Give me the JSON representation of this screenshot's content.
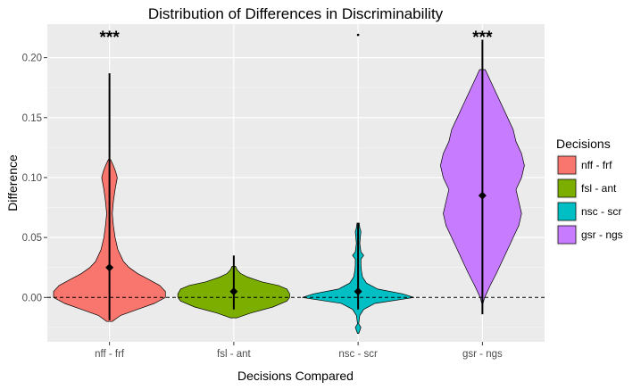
{
  "chart_data": {
    "type": "violin",
    "title": "Distribution of Differences in Discriminability",
    "xlabel": "Decisions Compared",
    "ylabel": "Difference",
    "ylim": [
      -0.037,
      0.228
    ],
    "yticks": [
      0.0,
      0.05,
      0.1,
      0.15,
      0.2
    ],
    "ytick_labels": [
      "0.00",
      "0.05",
      "0.10",
      "0.15",
      "0.20"
    ],
    "reference_line": {
      "y": 0,
      "style": "dashed"
    },
    "legend": {
      "title": "Decisions",
      "placement": "right"
    },
    "grid": true,
    "categories": [
      "nff - frf",
      "fsl - ant",
      "nsc - scr",
      "gsr - ngs"
    ],
    "series": [
      {
        "name": "nff - frf",
        "color": "#F8766D",
        "mean": 0.025,
        "significance": "***",
        "whisker": [
          -0.019,
          0.187
        ],
        "density": [
          [
            -0.02,
            0.05
          ],
          [
            -0.015,
            0.2
          ],
          [
            -0.01,
            0.5
          ],
          [
            -0.005,
            0.8
          ],
          [
            0.0,
            1.0
          ],
          [
            0.005,
            1.0
          ],
          [
            0.01,
            0.9
          ],
          [
            0.015,
            0.7
          ],
          [
            0.02,
            0.5
          ],
          [
            0.025,
            0.35
          ],
          [
            0.03,
            0.25
          ],
          [
            0.04,
            0.15
          ],
          [
            0.05,
            0.1
          ],
          [
            0.06,
            0.07
          ],
          [
            0.07,
            0.05
          ],
          [
            0.08,
            0.07
          ],
          [
            0.09,
            0.1
          ],
          [
            0.1,
            0.14
          ],
          [
            0.105,
            0.11
          ],
          [
            0.11,
            0.07
          ],
          [
            0.115,
            0.02
          ]
        ]
      },
      {
        "name": "fsl - ant",
        "color": "#7CAE00",
        "mean": 0.005,
        "significance": "",
        "whisker": [
          -0.01,
          0.035
        ],
        "density": [
          [
            -0.017,
            0.06
          ],
          [
            -0.013,
            0.3
          ],
          [
            -0.008,
            0.7
          ],
          [
            -0.003,
            0.95
          ],
          [
            0.0,
            1.0
          ],
          [
            0.003,
            1.0
          ],
          [
            0.007,
            0.95
          ],
          [
            0.01,
            0.8
          ],
          [
            0.013,
            0.5
          ],
          [
            0.017,
            0.25
          ],
          [
            0.02,
            0.12
          ],
          [
            0.023,
            0.06
          ],
          [
            0.026,
            0.03
          ]
        ]
      },
      {
        "name": "nsc - scr",
        "color": "#00BFC4",
        "mean": 0.005,
        "significance": "",
        "whisker": [
          -0.01,
          0.062
        ],
        "outlier": 0.219,
        "density": [
          [
            -0.03,
            0.01
          ],
          [
            -0.025,
            0.05
          ],
          [
            -0.022,
            0.01
          ],
          [
            -0.015,
            0.03
          ],
          [
            -0.01,
            0.1
          ],
          [
            -0.005,
            0.3
          ],
          [
            0.0,
            1.0
          ],
          [
            0.003,
            0.8
          ],
          [
            0.007,
            0.35
          ],
          [
            0.012,
            0.15
          ],
          [
            0.017,
            0.08
          ],
          [
            0.022,
            0.06
          ],
          [
            0.027,
            0.05
          ],
          [
            0.032,
            0.05
          ],
          [
            0.035,
            0.1
          ],
          [
            0.038,
            0.05
          ],
          [
            0.045,
            0.03
          ],
          [
            0.05,
            0.04
          ],
          [
            0.055,
            0.05
          ],
          [
            0.058,
            0.03
          ],
          [
            0.062,
            0.02
          ]
        ]
      },
      {
        "name": "gsr - ngs",
        "color": "#C77CFF",
        "mean": 0.085,
        "significance": "***",
        "whisker": [
          -0.014,
          0.215
        ],
        "density": [
          [
            -0.005,
            0.01
          ],
          [
            0.0,
            0.04
          ],
          [
            0.01,
            0.14
          ],
          [
            0.02,
            0.25
          ],
          [
            0.03,
            0.35
          ],
          [
            0.04,
            0.45
          ],
          [
            0.05,
            0.55
          ],
          [
            0.06,
            0.65
          ],
          [
            0.07,
            0.7
          ],
          [
            0.08,
            0.65
          ],
          [
            0.09,
            0.6
          ],
          [
            0.1,
            0.7
          ],
          [
            0.11,
            0.75
          ],
          [
            0.12,
            0.7
          ],
          [
            0.13,
            0.6
          ],
          [
            0.14,
            0.55
          ],
          [
            0.15,
            0.45
          ],
          [
            0.16,
            0.35
          ],
          [
            0.17,
            0.25
          ],
          [
            0.18,
            0.15
          ],
          [
            0.19,
            0.05
          ]
        ]
      }
    ]
  }
}
